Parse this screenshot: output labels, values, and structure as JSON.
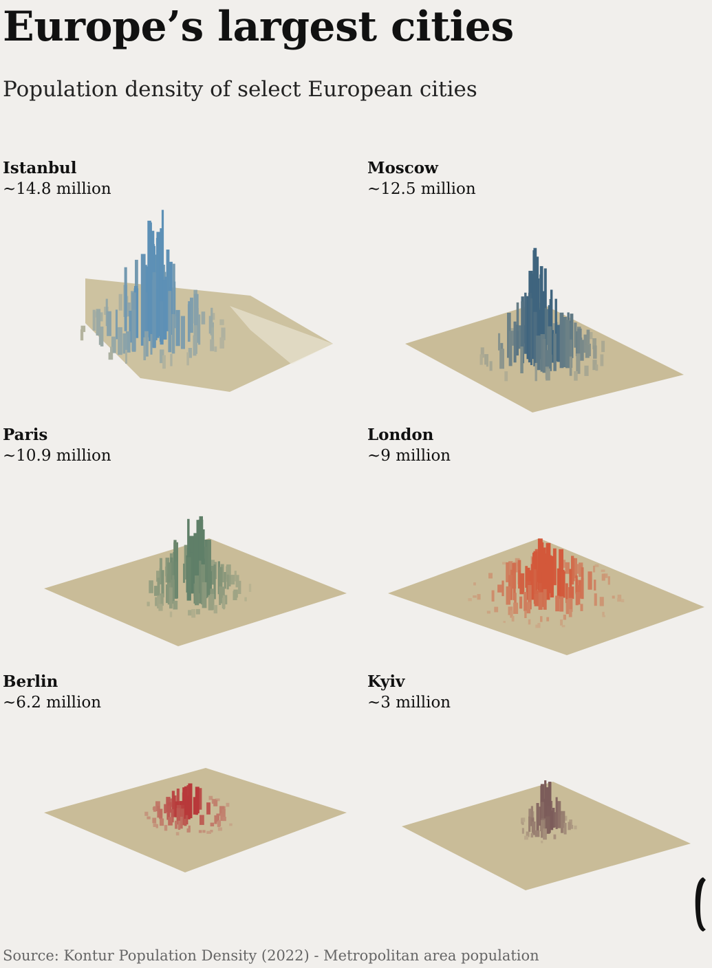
{
  "header": {
    "title": "Europe’s largest cities",
    "subtitle": "Population density of select European cities"
  },
  "cities": [
    {
      "name": "Istanbul",
      "population": "~14.8 million",
      "color": "#5d90b6"
    },
    {
      "name": "Moscow",
      "population": "~12.5 million",
      "color": "#3f647e"
    },
    {
      "name": "Paris",
      "population": "~10.9 million",
      "color": "#5f7f68"
    },
    {
      "name": "London",
      "population": "~9 million",
      "color": "#d3583a"
    },
    {
      "name": "Berlin",
      "population": "~6.2 million",
      "color": "#b8393a"
    },
    {
      "name": "Kyiv",
      "population": "~3 million",
      "color": "#7c5c5a"
    }
  ],
  "colors": {
    "base": "#c9bc98",
    "background": "#f1efec"
  },
  "footer": {
    "source": "Source: Kontur Population Density (2022) - Metropolitan area population",
    "logo_icon": "publisher-logo-icon"
  }
}
